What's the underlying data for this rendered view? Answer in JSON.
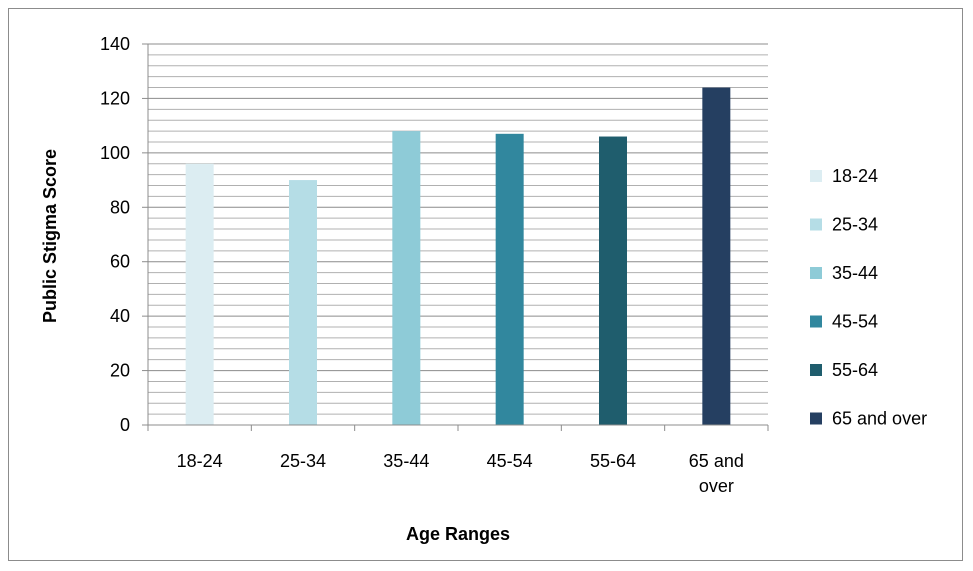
{
  "chart_data": {
    "type": "bar",
    "title": "",
    "xlabel": "Age Ranges",
    "ylabel": "Public Stigma Score",
    "categories": [
      "18-24",
      "25-34",
      "35-44",
      "45-54",
      "55-64",
      "65 and over"
    ],
    "values": [
      96,
      90,
      108,
      107,
      106,
      124
    ],
    "colors": [
      "#dcedf2",
      "#b5dde6",
      "#8ecbd7",
      "#31879e",
      "#1f5d6d",
      "#253f61"
    ],
    "ylim": [
      0,
      140
    ],
    "yticks": [
      0,
      20,
      40,
      60,
      80,
      100,
      120,
      140
    ],
    "minor_grid_step": 4,
    "grid": true,
    "legend": "right",
    "legend_labels": [
      "18-24",
      "25-34",
      "35-44",
      "45-54",
      "55-64",
      "65 and over"
    ]
  }
}
